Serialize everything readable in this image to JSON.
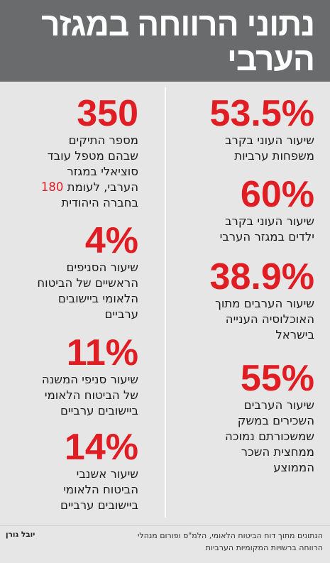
{
  "title": "נתוני הרווחה במגזר הערבי",
  "colors": {
    "header_bg": "#6a6b6d",
    "panel_bg": "#e6e6e6",
    "accent_red": "#e11d24"
  },
  "right_column": [
    {
      "value": "53.5%",
      "description": "שיעור העוני בקרב\nמשפחות ערביות"
    },
    {
      "value": "60%",
      "description": "שיעור העוני בקרב\nילדים במגזר הערבי"
    },
    {
      "value": "38.9%",
      "description": "שיעור הערבים מתוך\nהאוכלוסיה הענייה\nבישראל"
    },
    {
      "value": "55%",
      "description": "שיעור הערבים\nהשכירים במשק\nשמשכורתם נמוכה\nממחצית השכר\nהממוצע"
    }
  ],
  "left_column": [
    {
      "value": "350",
      "description_before": "מספר התיקים\nשבהם מטפל עובד\nסוציאלי במגזר\nהערבי, לעומת ",
      "highlight": "180",
      "description_after": "\nבחברה היהודית"
    },
    {
      "value": "4%",
      "description": "שיעור הסניפים\nהראשיים של הביטוח\nהלאומי ביישובים\nערביים"
    },
    {
      "value": "11%",
      "description": "שיעור סניפי המשנה\nשל הביטוח הלאומי\nביישובים ערביים"
    },
    {
      "value": "14%",
      "description": "שיעור אשנבי\nהביטוח הלאומי\nביישובים ערביים"
    }
  ],
  "credit": "יובל גורן",
  "source": "הנתונים מתוך דוח הביטוח הלאומי, הלמ\"ס ופורום מנהלי\nהרווחה ברשויות המקומיות הערביות"
}
